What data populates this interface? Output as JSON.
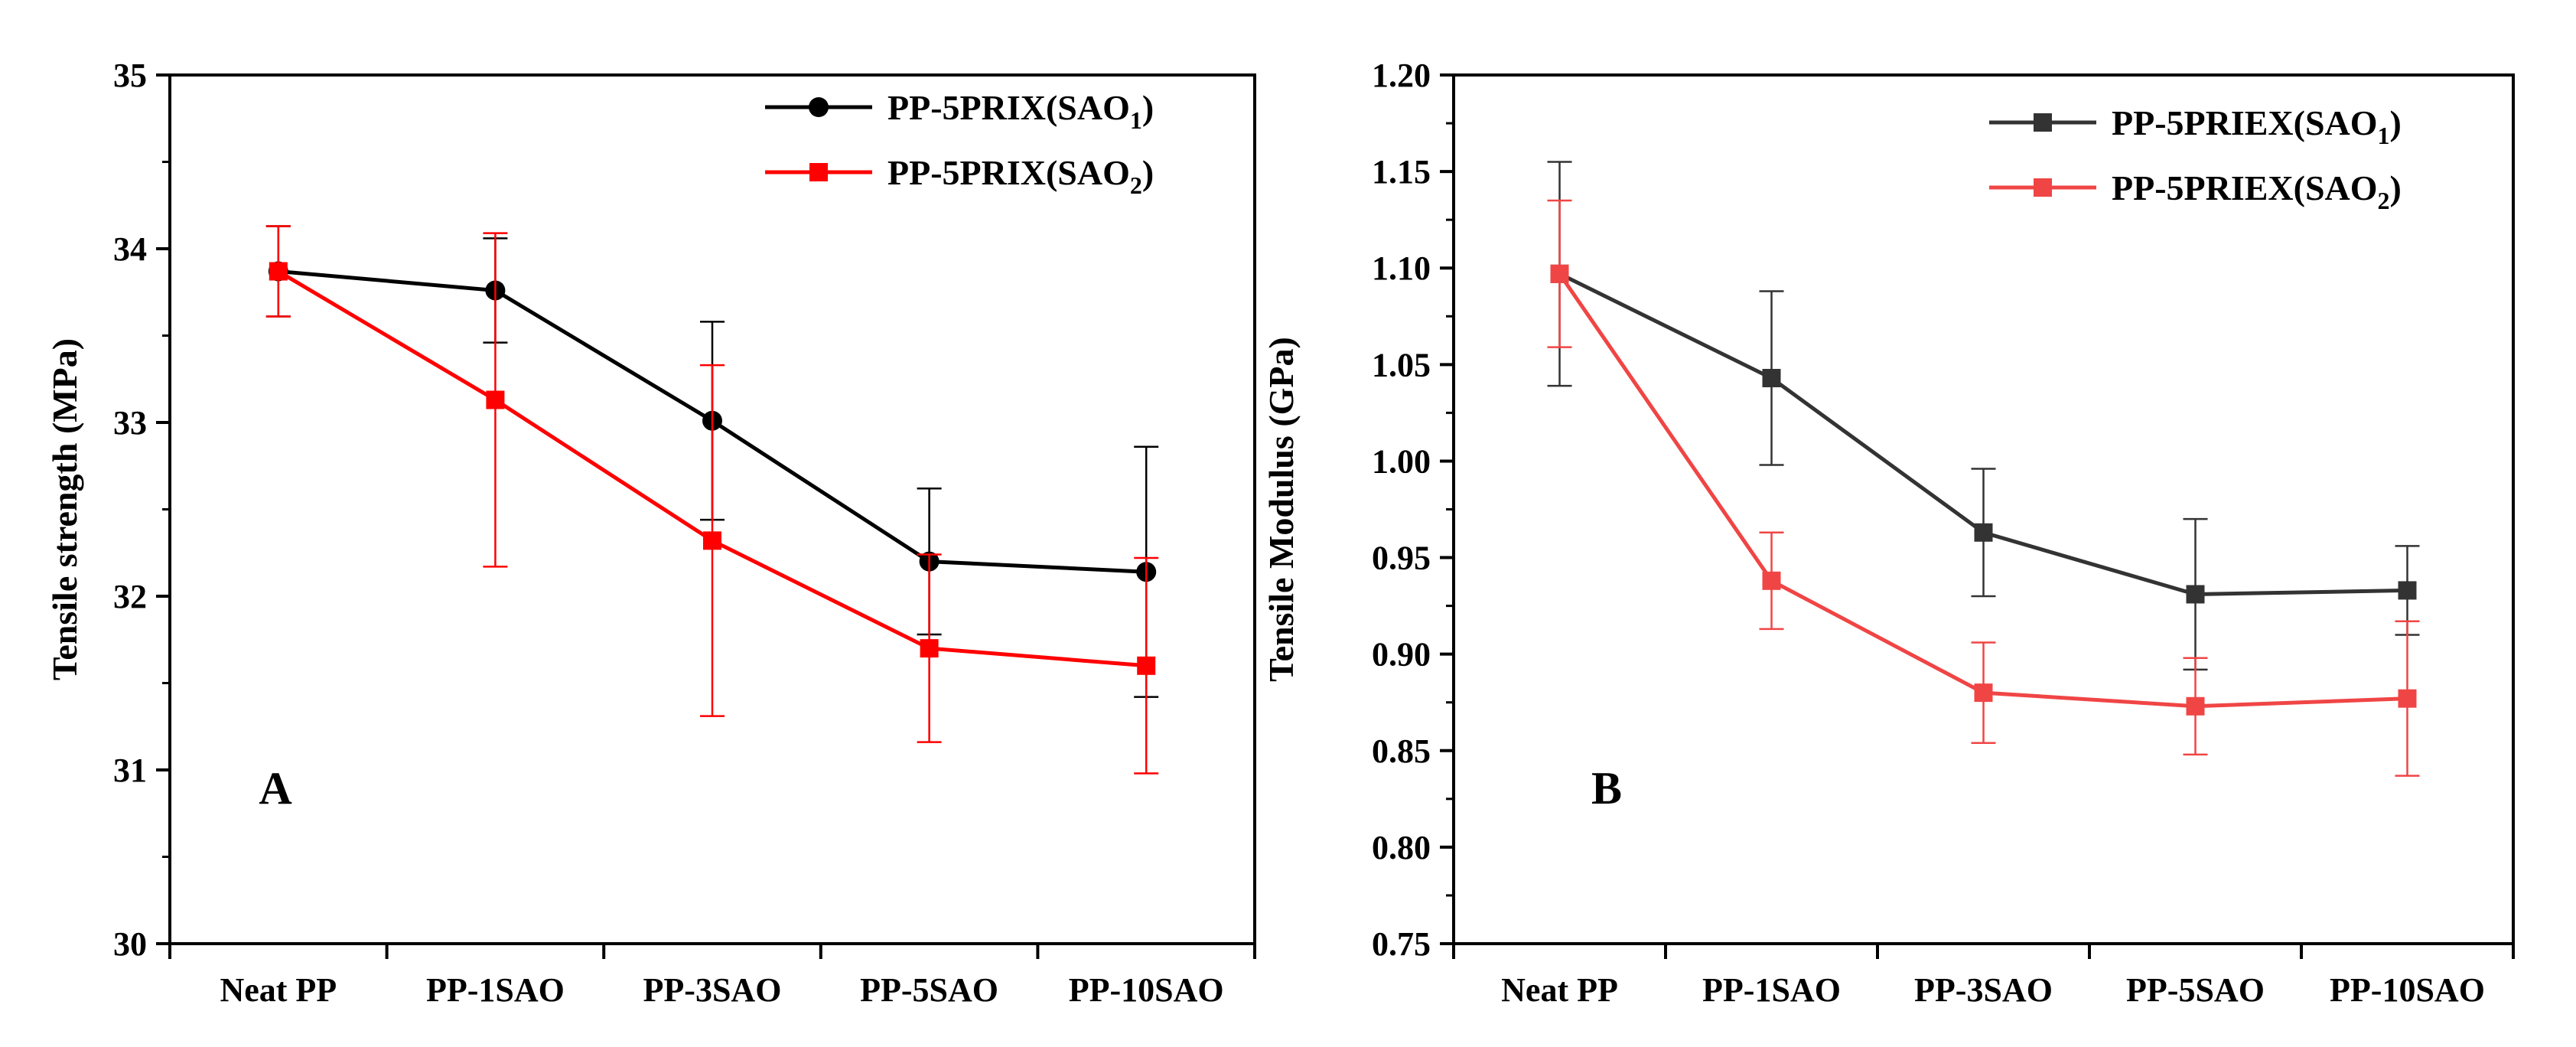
{
  "chart_data": [
    {
      "type": "line",
      "panel_label": "A",
      "title": "",
      "xlabel": "",
      "ylabel": "Tensile strength (MPa)",
      "categories": [
        "Neat PP",
        "PP-1SAO",
        "PP-3SAO",
        "PP-5SAO",
        "PP-10SAO"
      ],
      "ylim": [
        30,
        35
      ],
      "yticks": [
        30,
        31,
        32,
        33,
        34,
        35
      ],
      "ytick_labels": [
        "30",
        "31",
        "32",
        "33",
        "34",
        "35"
      ],
      "legend_position": "top-right",
      "grid": false,
      "series": [
        {
          "name": "PP-5PRIX(SAO1)",
          "legend_main": "PP-5PRIX(SAO",
          "legend_sub": "1",
          "legend_end": ")",
          "color": "#000000",
          "marker": "circle",
          "values": [
            33.87,
            33.76,
            33.01,
            32.2,
            32.14
          ],
          "errors": [
            0.26,
            0.3,
            0.57,
            0.42,
            0.72
          ]
        },
        {
          "name": "PP-5PRIX(SAO2)",
          "legend_main": "PP-5PRIX(SAO",
          "legend_sub": "2",
          "legend_end": ")",
          "color": "#ff0000",
          "marker": "square",
          "values": [
            33.87,
            33.13,
            32.32,
            31.7,
            31.6
          ],
          "errors": [
            0.26,
            0.96,
            1.01,
            0.54,
            0.62
          ]
        }
      ]
    },
    {
      "type": "line",
      "panel_label": "B",
      "title": "",
      "xlabel": "",
      "ylabel": "Tensile Modulus (GPa)",
      "categories": [
        "Neat PP",
        "PP-1SAO",
        "PP-3SAO",
        "PP-5SAO",
        "PP-10SAO"
      ],
      "ylim": [
        0.75,
        1.2
      ],
      "yticks": [
        0.75,
        0.8,
        0.85,
        0.9,
        0.95,
        1.0,
        1.05,
        1.1,
        1.15,
        1.2
      ],
      "ytick_labels": [
        "0.75",
        "0.80",
        "0.85",
        "0.90",
        "0.95",
        "1.00",
        "1.05",
        "1.10",
        "1.15",
        "1.20"
      ],
      "legend_position": "top-right",
      "grid": false,
      "series": [
        {
          "name": "PP-5PRIEX(SAO1)",
          "legend_main": "PP-5PRIEX(SAO",
          "legend_sub": "1",
          "legend_end": ")",
          "color": "#333333",
          "marker": "square",
          "values": [
            1.097,
            1.043,
            0.963,
            0.931,
            0.933
          ],
          "errors": [
            0.058,
            0.045,
            0.033,
            0.039,
            0.023
          ]
        },
        {
          "name": "PP-5PRIEX(SAO2)",
          "legend_main": "PP-5PRIEX(SAO",
          "legend_sub": "2",
          "legend_end": ")",
          "color": "#f04545",
          "marker": "square",
          "values": [
            1.097,
            0.938,
            0.88,
            0.873,
            0.877
          ],
          "errors": [
            0.038,
            0.025,
            0.026,
            0.025,
            0.04
          ]
        }
      ]
    }
  ]
}
